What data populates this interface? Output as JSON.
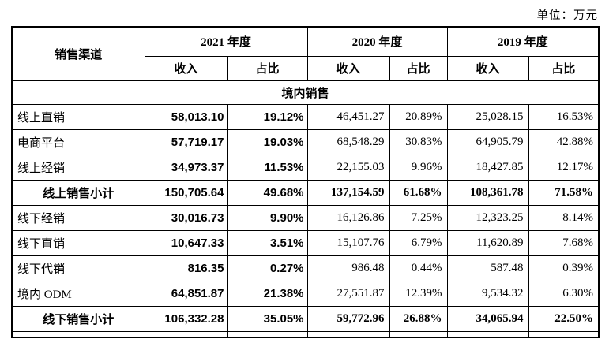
{
  "meta": {
    "unit_label": "单位：万元"
  },
  "table": {
    "channel_header": "销售渠道",
    "year_groups": [
      {
        "label": "2021 年度",
        "sub": [
          "收入",
          "占比"
        ]
      },
      {
        "label": "2020 年度",
        "sub": [
          "收入",
          "占比"
        ]
      },
      {
        "label": "2019 年度",
        "sub": [
          "收入",
          "占比"
        ]
      }
    ],
    "section_header": "境内销售",
    "rows": [
      {
        "label": "线上直销",
        "type": "data",
        "values": [
          "58,013.10",
          "19.12%",
          "46,451.27",
          "20.89%",
          "25,028.15",
          "16.53%"
        ]
      },
      {
        "label": "电商平台",
        "type": "data",
        "values": [
          "57,719.17",
          "19.03%",
          "68,548.29",
          "30.83%",
          "64,905.79",
          "42.88%"
        ]
      },
      {
        "label": "线上经销",
        "type": "data",
        "values": [
          "34,973.37",
          "11.53%",
          "22,155.03",
          "9.96%",
          "18,427.85",
          "12.17%"
        ]
      },
      {
        "label": "线上销售小计",
        "type": "subtotal",
        "values": [
          "150,705.64",
          "49.68%",
          "137,154.59",
          "61.68%",
          "108,361.78",
          "71.58%"
        ]
      },
      {
        "label": "线下经销",
        "type": "data",
        "values": [
          "30,016.73",
          "9.90%",
          "16,126.86",
          "7.25%",
          "12,323.25",
          "8.14%"
        ]
      },
      {
        "label": "线下直销",
        "type": "data",
        "values": [
          "10,647.33",
          "3.51%",
          "15,107.76",
          "6.79%",
          "11,620.89",
          "7.68%"
        ]
      },
      {
        "label": "线下代销",
        "type": "data",
        "values": [
          "816.35",
          "0.27%",
          "986.48",
          "0.44%",
          "587.48",
          "0.39%"
        ]
      },
      {
        "label": "境内 ODM",
        "type": "data",
        "values": [
          "64,851.87",
          "21.38%",
          "27,551.87",
          "12.39%",
          "9,534.32",
          "6.30%"
        ]
      },
      {
        "label": "线下销售小计",
        "type": "subtotal",
        "values": [
          "106,332.28",
          "35.05%",
          "59,772.96",
          "26.88%",
          "34,065.94",
          "22.50%"
        ]
      }
    ]
  }
}
